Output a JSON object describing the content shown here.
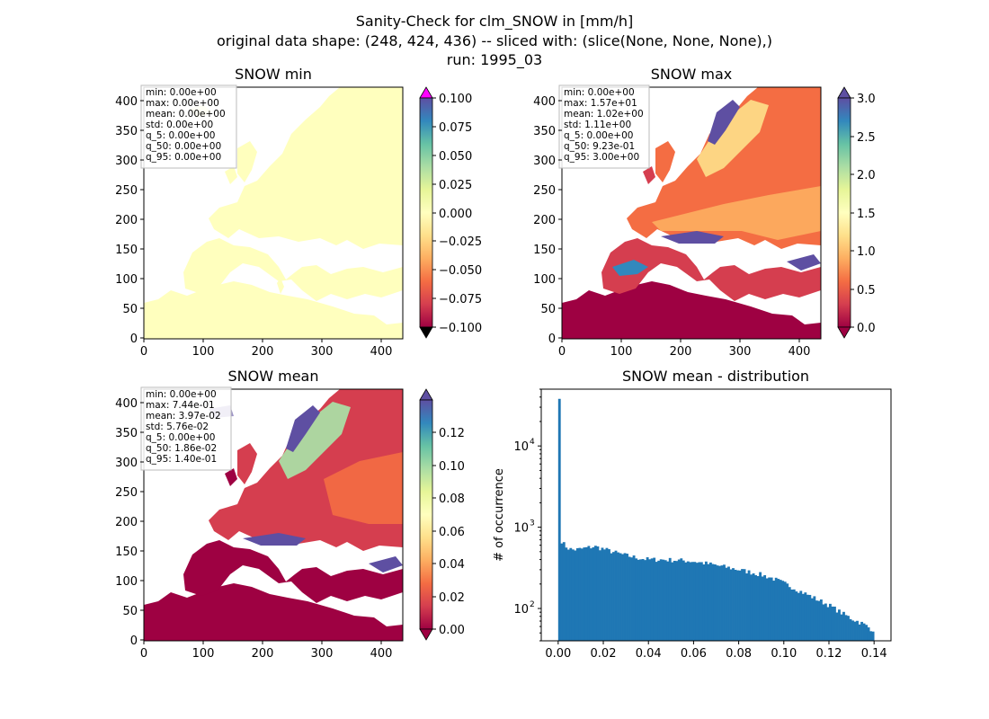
{
  "figure": {
    "title_lines": [
      "Sanity-Check for clm_SNOW in [mm/h]",
      "original data shape: (248, 424, 436) -- sliced with: (slice(None, None, None),)",
      "run: 1995_03"
    ]
  },
  "colors": {
    "ocean": "#ffffff",
    "land_min": "#ffffbe",
    "hist_bar": "#1f77b4",
    "cbar_over": "#ff00ff",
    "cbar_under": "#000000",
    "spectral": [
      "#9e0142",
      "#d53e4f",
      "#f46d43",
      "#fdae61",
      "#fee08b",
      "#ffffbf",
      "#e6f598",
      "#abdda4",
      "#66c2a5",
      "#3288bd",
      "#5e4fa2"
    ]
  },
  "chart_data": [
    {
      "type": "heatmap",
      "title": "SNOW min",
      "xlim": [
        0,
        436
      ],
      "ylim": [
        0,
        424
      ],
      "xticks": [
        "0",
        "100",
        "200",
        "300",
        "400"
      ],
      "yticks": [
        "0",
        "50",
        "100",
        "150",
        "200",
        "250",
        "300",
        "350",
        "400"
      ],
      "stats": [
        "min: 0.00e+00",
        "max: 0.00e+00",
        "mean: 0.00e+00",
        "std: 0.00e+00",
        "q_5: 0.00e+00",
        "q_50: 0.00e+00",
        "q_95: 0.00e+00"
      ],
      "colorbar": {
        "range": [
          -0.1,
          0.1
        ],
        "ticks": [
          "0.100",
          "0.075",
          "0.050",
          "0.025",
          "0.000",
          "−0.025",
          "−0.050",
          "−0.075",
          "−0.100"
        ],
        "extend": "both",
        "over_color": "#ff00ff",
        "under_color": "#000000"
      },
      "field": "constant 0"
    },
    {
      "type": "heatmap",
      "title": "SNOW max",
      "xlim": [
        0,
        436
      ],
      "ylim": [
        0,
        424
      ],
      "xticks": [
        "0",
        "100",
        "200",
        "300",
        "400"
      ],
      "yticks": [
        "0",
        "50",
        "100",
        "150",
        "200",
        "250",
        "300",
        "350",
        "400"
      ],
      "stats": [
        "min: 0.00e+00",
        "max: 1.57e+01",
        "mean: 1.02e+00",
        "std: 1.11e+00",
        "q_5: 0.00e+00",
        "q_50: 9.23e-01",
        "q_95: 3.00e+00"
      ],
      "colorbar": {
        "range": [
          0,
          3.0
        ],
        "ticks": [
          "3.0",
          "2.5",
          "2.0",
          "1.5",
          "1.0",
          "0.5",
          "0.0"
        ],
        "extend": "both"
      }
    },
    {
      "type": "heatmap",
      "title": "SNOW mean",
      "xlim": [
        0,
        436
      ],
      "ylim": [
        0,
        424
      ],
      "xticks": [
        "0",
        "100",
        "200",
        "300",
        "400"
      ],
      "yticks": [
        "0",
        "50",
        "100",
        "150",
        "200",
        "250",
        "300",
        "350",
        "400"
      ],
      "stats": [
        "min: 0.00e+00",
        "max: 7.44e-01",
        "mean: 3.97e-02",
        "std: 5.76e-02",
        "q_5: 0.00e+00",
        "q_50: 1.86e-02",
        "q_95: 1.40e-01"
      ],
      "colorbar": {
        "range": [
          0,
          0.14
        ],
        "ticks": [
          "0.12",
          "0.10",
          "0.08",
          "0.06",
          "0.04",
          "0.02",
          "0.00"
        ],
        "extend": "both"
      }
    },
    {
      "type": "bar",
      "title": "SNOW mean - distribution",
      "ylabel": "# of occurrence",
      "xlabel": "",
      "yscale": "log",
      "xlim": [
        -0.0075,
        0.1475
      ],
      "ylim": [
        40,
        50000
      ],
      "xticks": [
        "0.00",
        "0.02",
        "0.04",
        "0.06",
        "0.08",
        "0.10",
        "0.12",
        "0.14"
      ],
      "yticks": [
        "10",
        "10",
        "10"
      ],
      "ytick_exponents": [
        "2",
        "3",
        "4"
      ],
      "bin_edges": [
        0,
        0.14
      ],
      "bins": 140,
      "counts_anchors": [
        [
          0.0,
          38000
        ],
        [
          0.001,
          720
        ],
        [
          0.002,
          640
        ],
        [
          0.004,
          560
        ],
        [
          0.006,
          530
        ],
        [
          0.008,
          530
        ],
        [
          0.01,
          540
        ],
        [
          0.013,
          560
        ],
        [
          0.016,
          580
        ],
        [
          0.02,
          540
        ],
        [
          0.025,
          490
        ],
        [
          0.03,
          450
        ],
        [
          0.035,
          420
        ],
        [
          0.04,
          400
        ],
        [
          0.045,
          400
        ],
        [
          0.05,
          395
        ],
        [
          0.055,
          390
        ],
        [
          0.06,
          380
        ],
        [
          0.065,
          360
        ],
        [
          0.07,
          340
        ],
        [
          0.075,
          320
        ],
        [
          0.08,
          300
        ],
        [
          0.085,
          280
        ],
        [
          0.09,
          260
        ],
        [
          0.095,
          235
        ],
        [
          0.1,
          205
        ],
        [
          0.105,
          175
        ],
        [
          0.11,
          150
        ],
        [
          0.115,
          128
        ],
        [
          0.12,
          110
        ],
        [
          0.125,
          90
        ],
        [
          0.13,
          75
        ],
        [
          0.135,
          65
        ],
        [
          0.139,
          55
        ]
      ]
    }
  ]
}
